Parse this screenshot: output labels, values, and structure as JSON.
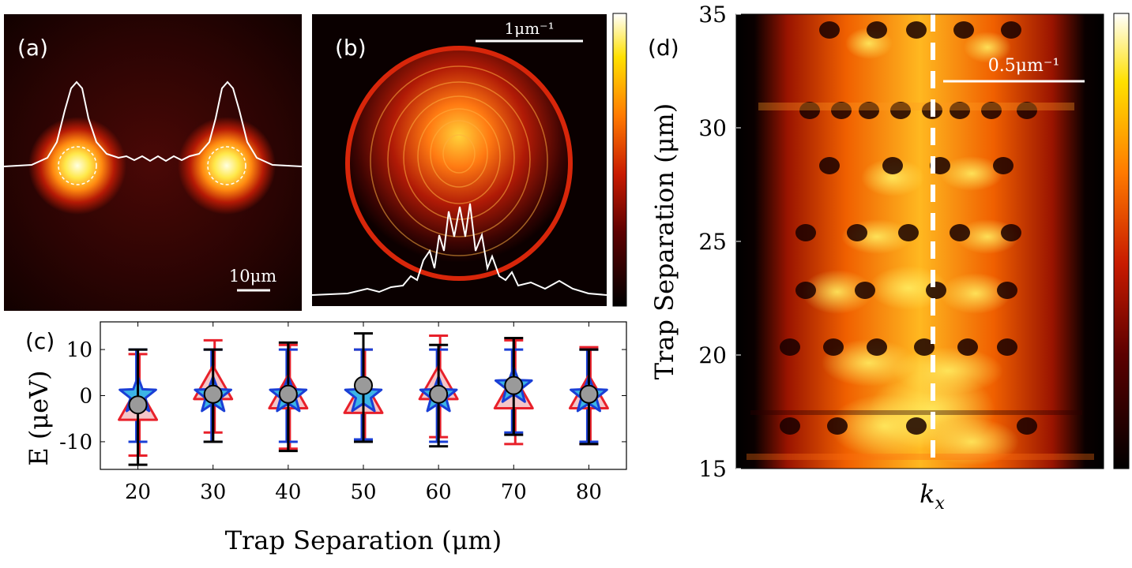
{
  "panels": {
    "a": {
      "label": "(a)",
      "scalebar": "10μm"
    },
    "b": {
      "label": "(b)",
      "scalebar": "1μm⁻¹"
    },
    "c": {
      "label": "(c)"
    },
    "d": {
      "label": "(d)",
      "scalebar": "0.5μm⁻¹"
    }
  },
  "colors": {
    "triangle_edge": "#e8202a",
    "triangle_fill": "#f4c6c8",
    "star_edge": "#1a3fd6",
    "star_fill": "#3cb4e6",
    "circle_fill": "#9a9a9a",
    "errorbar": "#000000"
  },
  "chart_data": [
    {
      "panel": "c",
      "type": "scatter",
      "xlabel": "Trap Separation (μm)",
      "ylabel": "E (μeV)",
      "xlim": [
        15,
        85
      ],
      "ylim": [
        -16,
        16
      ],
      "xticks": [
        "20",
        "30",
        "40",
        "50",
        "60",
        "70",
        "80"
      ],
      "yticks": [
        "10",
        "0",
        "-10"
      ],
      "x": [
        20,
        30,
        40,
        50,
        60,
        70,
        80
      ],
      "series": [
        {
          "name": "triangle",
          "values": [
            -2.5,
            2,
            0,
            -1,
            2,
            0,
            0
          ],
          "err_low": [
            -13,
            -8,
            -11.5,
            -10,
            -9,
            -10.5,
            -10.5
          ],
          "err_high": [
            9,
            12,
            11,
            10,
            13,
            12,
            10.5
          ]
        },
        {
          "name": "star",
          "values": [
            0,
            0,
            0,
            0,
            0,
            2,
            0
          ],
          "err_low": [
            -10,
            -10,
            -10,
            -9.5,
            -10,
            -8,
            -10
          ],
          "err_high": [
            10,
            10,
            10,
            10,
            10,
            10,
            10
          ]
        },
        {
          "name": "circle",
          "values": [
            -2,
            0.3,
            0.3,
            2.2,
            0.3,
            2.2,
            0.3
          ],
          "err_low": [
            -15,
            -10,
            -12,
            -10,
            -11,
            -8.5,
            -10.5
          ],
          "err_high": [
            10,
            10,
            11.5,
            13.5,
            11,
            12.5,
            10
          ]
        }
      ]
    },
    {
      "panel": "d",
      "type": "heatmap",
      "xlabel": "k",
      "xlabel_sub": "x",
      "ylabel": "Trap Separation (μm)",
      "ylim": [
        15,
        35
      ],
      "yticks": [
        "35",
        "30",
        "25",
        "20",
        "15"
      ],
      "marker_line": "k = 0 (dashed)"
    }
  ]
}
